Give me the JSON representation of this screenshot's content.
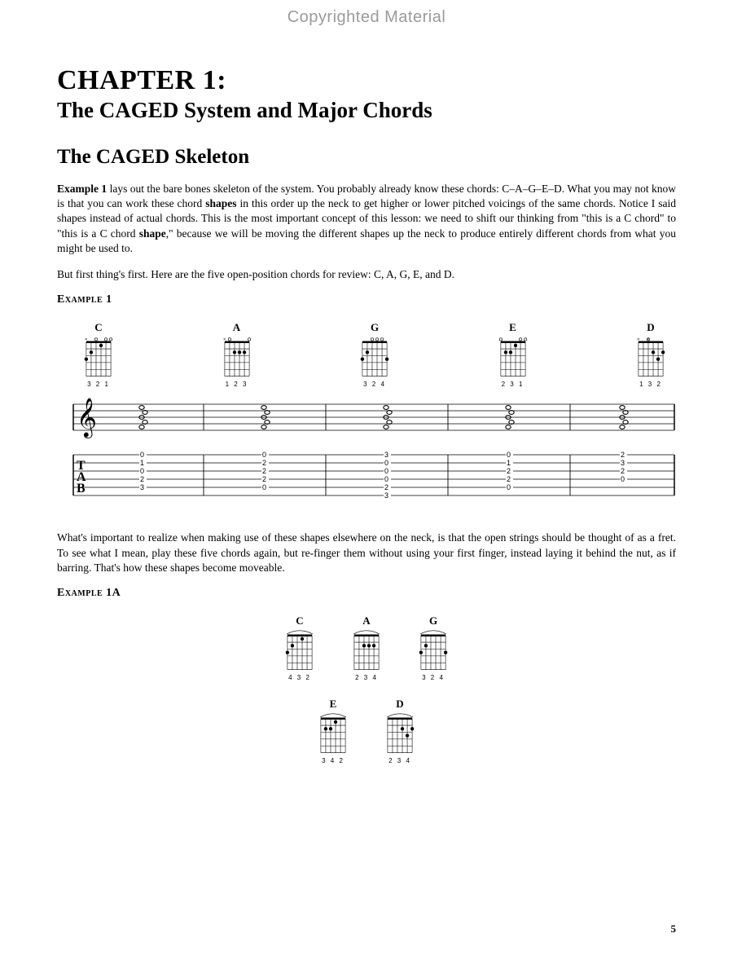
{
  "watermark": "Copyrighted Material",
  "chapter_number": "CHAPTER 1:",
  "chapter_title": "The CAGED System and Major Chords",
  "section_heading": "The CAGED Skeleton",
  "para1_lead": "Example 1",
  "para1_a": " lays out the bare bones skeleton of the system. You probably already know these chords: C–A–G–E–D. What you may not know is that you can work these chord ",
  "para1_b": "shapes",
  "para1_c": " in this order up the neck to get higher or lower pitched voicings of the same chords. Notice I said shapes instead of actual chords. This is the most important concept of this lesson: we need to shift our thinking from \"this is a C chord\" to \"this is a C chord ",
  "para1_d": "shape",
  "para1_e": ",\" because we will be moving the different shapes up the neck to produce entirely different chords from what you might be used to.",
  "para2": "But first thing's first. Here are the five open-position chords for review: C, A, G, E, and D.",
  "example1_label": "Example 1",
  "para3": "What's important to realize when making use of these shapes elsewhere on the neck, is that the open strings should be thought of as a fret. To see what I mean, play these five chords again, but re-finger them without using your first finger, instead laying it behind the nut, as if barring. That's how these shapes become moveable.",
  "example1a_label": "Example 1A",
  "page_number": "5",
  "chords_ex1": [
    {
      "name": "C",
      "fingering": "3 2   1",
      "markers": "x     ",
      "dots": [
        [
          0,
          3
        ],
        [
          1,
          2
        ],
        [
          3,
          1
        ]
      ],
      "opens": [
        2,
        4,
        5
      ]
    },
    {
      "name": "A",
      "fingering": "  1 2 3",
      "markers": "x     ",
      "dots": [
        [
          2,
          2
        ],
        [
          3,
          2
        ],
        [
          4,
          2
        ]
      ],
      "opens": [
        1,
        5
      ]
    },
    {
      "name": "G",
      "fingering": "3 2     4",
      "markers": "      ",
      "dots": [
        [
          0,
          3
        ],
        [
          1,
          2
        ],
        [
          5,
          3
        ]
      ],
      "opens": [
        2,
        3,
        4
      ]
    },
    {
      "name": "E",
      "fingering": " 2 3 1",
      "markers": "      ",
      "dots": [
        [
          1,
          2
        ],
        [
          2,
          2
        ],
        [
          3,
          1
        ]
      ],
      "opens": [
        0,
        4,
        5
      ]
    },
    {
      "name": "D",
      "fingering": "   1 3 2",
      "markers": "x x   ",
      "dots": [
        [
          3,
          2
        ],
        [
          4,
          3
        ],
        [
          5,
          2
        ]
      ],
      "opens": [
        2
      ]
    }
  ],
  "chords_ex1a": [
    {
      "name": "C",
      "fingering": "4 3   2",
      "dots": [
        [
          0,
          3
        ],
        [
          1,
          2
        ],
        [
          3,
          1
        ]
      ],
      "barre": true
    },
    {
      "name": "A",
      "fingering": "  2 3 4",
      "dots": [
        [
          2,
          2
        ],
        [
          3,
          2
        ],
        [
          4,
          2
        ]
      ],
      "barre": true
    },
    {
      "name": "G",
      "fingering": "3 2     4",
      "dots": [
        [
          0,
          3
        ],
        [
          1,
          2
        ],
        [
          5,
          3
        ]
      ],
      "barre": true
    },
    {
      "name": "E",
      "fingering": " 3 4 2",
      "dots": [
        [
          1,
          2
        ],
        [
          2,
          2
        ],
        [
          3,
          1
        ]
      ],
      "barre": true
    },
    {
      "name": "D",
      "fingering": "   2 3 4",
      "dots": [
        [
          3,
          2
        ],
        [
          4,
          3
        ],
        [
          5,
          2
        ]
      ],
      "barre": true
    }
  ],
  "staff": {
    "tab_labels": [
      "T",
      "A",
      "B"
    ],
    "tab_values": [
      [
        "0",
        "1",
        "0",
        "2",
        "3",
        ""
      ],
      [
        "0",
        "2",
        "2",
        "2",
        "0",
        ""
      ],
      [
        "3",
        "0",
        "0",
        "0",
        "2",
        "3"
      ],
      [
        "0",
        "1",
        "2",
        "2",
        "0",
        ""
      ],
      [
        "2",
        "3",
        "2",
        "0",
        "",
        ""
      ]
    ]
  },
  "colors": {
    "text": "#000000",
    "watermark": "#9a9a9a",
    "background": "#ffffff"
  }
}
